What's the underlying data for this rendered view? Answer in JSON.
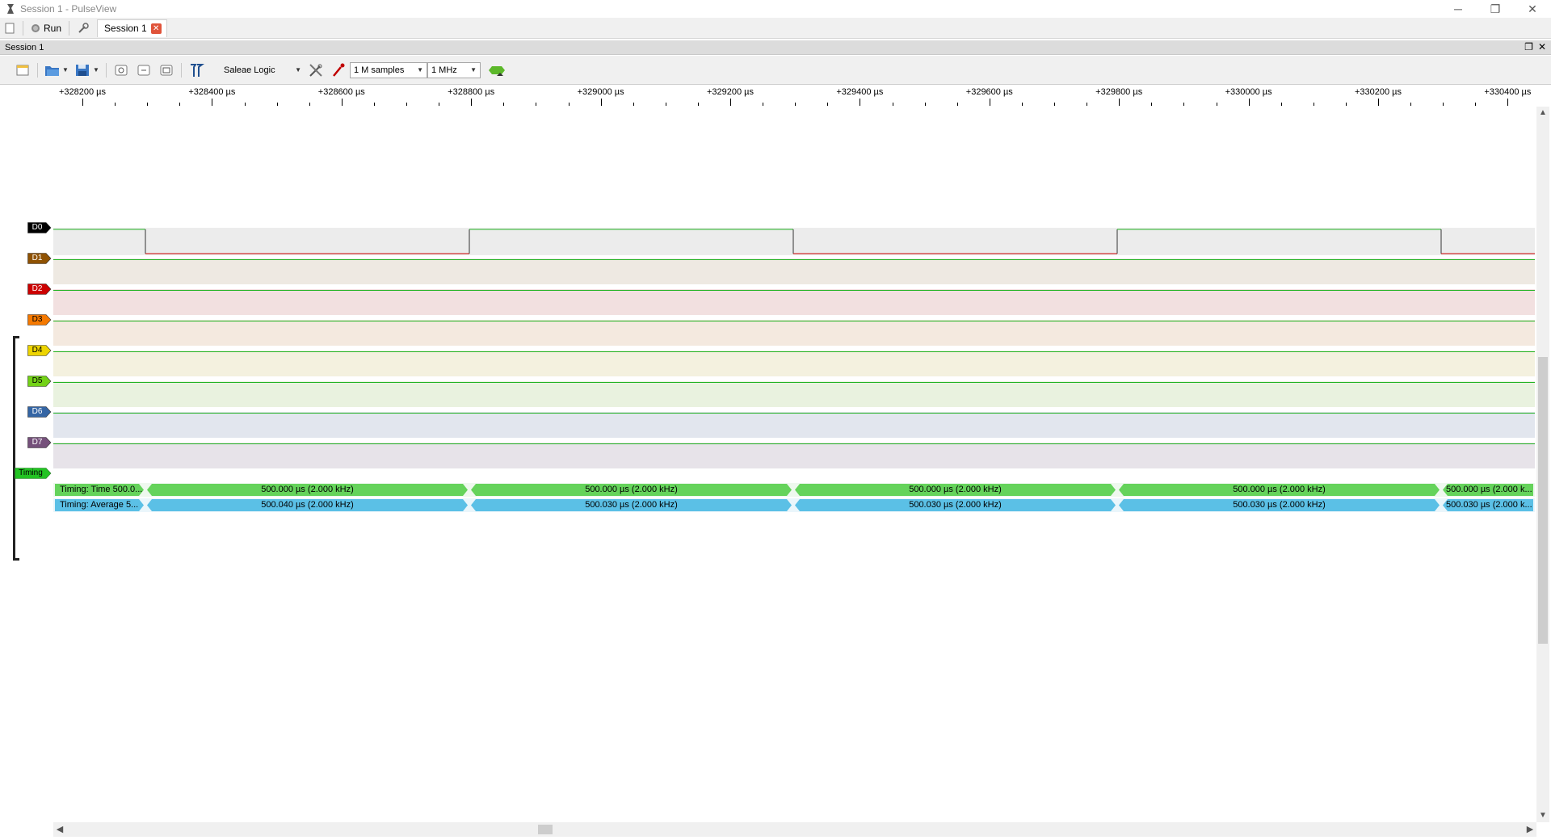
{
  "window": {
    "title": "Session 1 - PulseView",
    "minimize_glyph": "─",
    "restore_glyph": "❐",
    "close_glyph": "✕"
  },
  "main_toolbar": {
    "run_label": "Run",
    "session_tab_label": "Session 1",
    "tab_close_glyph": "✕"
  },
  "session": {
    "header_title": "Session 1",
    "device": "Saleae Logic",
    "samples": "1 M samples",
    "samplerate": "1 MHz"
  },
  "ruler": {
    "labels": [
      "+328200 µs",
      "+328400 µs",
      "+328600 µs",
      "+328800 µs",
      "+329000 µs",
      "+329200 µs",
      "+329400 µs",
      "+329600 µs",
      "+329800 µs",
      "+330000 µs",
      "+330200 µs",
      "+330400 µs"
    ]
  },
  "channels": [
    {
      "name": "D0",
      "color": "#000000",
      "lane_bg": "#ececec"
    },
    {
      "name": "D1",
      "color": "#8f5202",
      "lane_bg": "#eee9e2"
    },
    {
      "name": "D2",
      "color": "#cc0000",
      "lane_bg": "#f2e0e0"
    },
    {
      "name": "D3",
      "color": "#f57900",
      "lane_bg": "#f4e9df"
    },
    {
      "name": "D4",
      "color": "#edd400",
      "lane_bg": "#f4f1df"
    },
    {
      "name": "D5",
      "color": "#73d216",
      "lane_bg": "#e9f2df"
    },
    {
      "name": "D6",
      "color": "#3465a4",
      "lane_bg": "#e2e6ee"
    },
    {
      "name": "D7",
      "color": "#75507b",
      "lane_bg": "#e7e3e9"
    }
  ],
  "decoder": {
    "name": "Timing",
    "color": "#22c322",
    "rows": [
      {
        "title": "Timing: Time",
        "color": "#65d35b",
        "leading": "500.0...",
        "segments": [
          "500.000 µs (2.000 kHz)",
          "500.000 µs (2.000 kHz)",
          "500.000 µs (2.000 kHz)",
          "500.000 µs (2.000 kHz)"
        ],
        "trailing": "500.000 µs (2.000 k..."
      },
      {
        "title": "Timing: Average",
        "color": "#5bc0e6",
        "leading": "5...",
        "segments": [
          "500.040 µs (2.000 kHz)",
          "500.030 µs (2.000 kHz)",
          "500.030 µs (2.000 kHz)",
          "500.030 µs (2.000 kHz)"
        ],
        "trailing": "500.030 µs (2.000 k..."
      }
    ]
  },
  "colors": {
    "signal_high": "#23b323",
    "signal_low": "#cc0000"
  }
}
